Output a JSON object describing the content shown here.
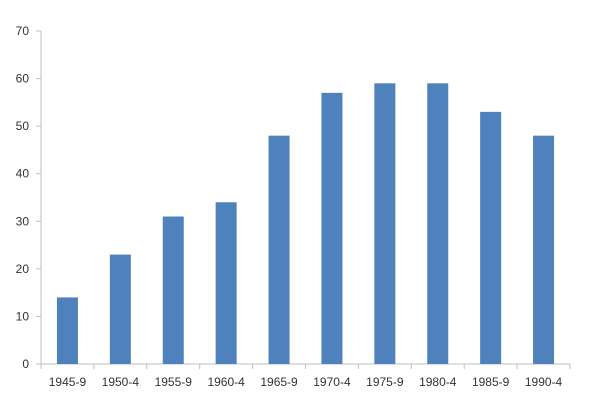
{
  "chart_data": {
    "type": "bar",
    "categories": [
      "1945-9",
      "1950-4",
      "1955-9",
      "1960-4",
      "1965-9",
      "1970-4",
      "1975-9",
      "1980-4",
      "1985-9",
      "1990-4"
    ],
    "values": [
      14,
      23,
      31,
      34,
      48,
      57,
      59,
      59,
      53,
      48
    ],
    "ylim": [
      0,
      70
    ],
    "yticks": [
      0,
      10,
      20,
      30,
      40,
      50,
      60,
      70
    ],
    "grid": false,
    "legend": "none",
    "bar_color": "#4f81bd",
    "axis_color": "#bfbfbf"
  }
}
